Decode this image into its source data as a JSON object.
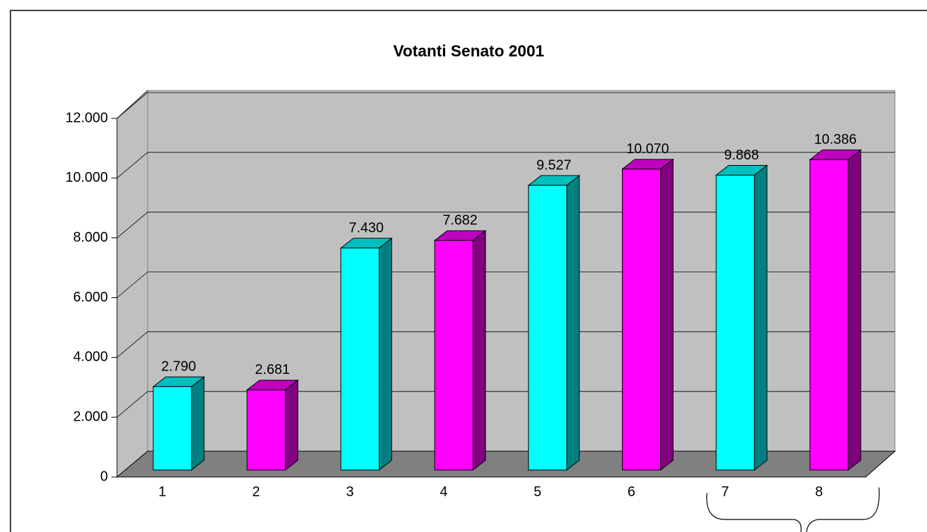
{
  "chart_data": {
    "type": "bar3d",
    "title": "Votanti Senato 2001",
    "categories": [
      "1",
      "2",
      "3",
      "4",
      "5",
      "6",
      "7",
      "8"
    ],
    "values": [
      2790,
      2681,
      7430,
      7682,
      9527,
      10070,
      9868,
      10386
    ],
    "value_labels": [
      "2.790",
      "2.681",
      "7.430",
      "7.682",
      "9.527",
      "10.070",
      "9.868",
      "10.386"
    ],
    "colors": [
      "#00ffff",
      "#ff00ff",
      "#00ffff",
      "#ff00ff",
      "#00ffff",
      "#ff00ff",
      "#00ffff",
      "#ff00ff"
    ],
    "ylim": [
      0,
      12000
    ],
    "yticks": [
      0,
      {
        "value": 2000,
        "label": "2.000"
      },
      {
        "value": 4000,
        "label": "4.000"
      },
      {
        "value": 6000,
        "label": "6.000"
      },
      {
        "value": 8000,
        "label": "8.000"
      },
      {
        "value": 10000,
        "label": "10.000"
      },
      {
        "value": 12000,
        "label": "12.000"
      }
    ],
    "grid": true
  }
}
